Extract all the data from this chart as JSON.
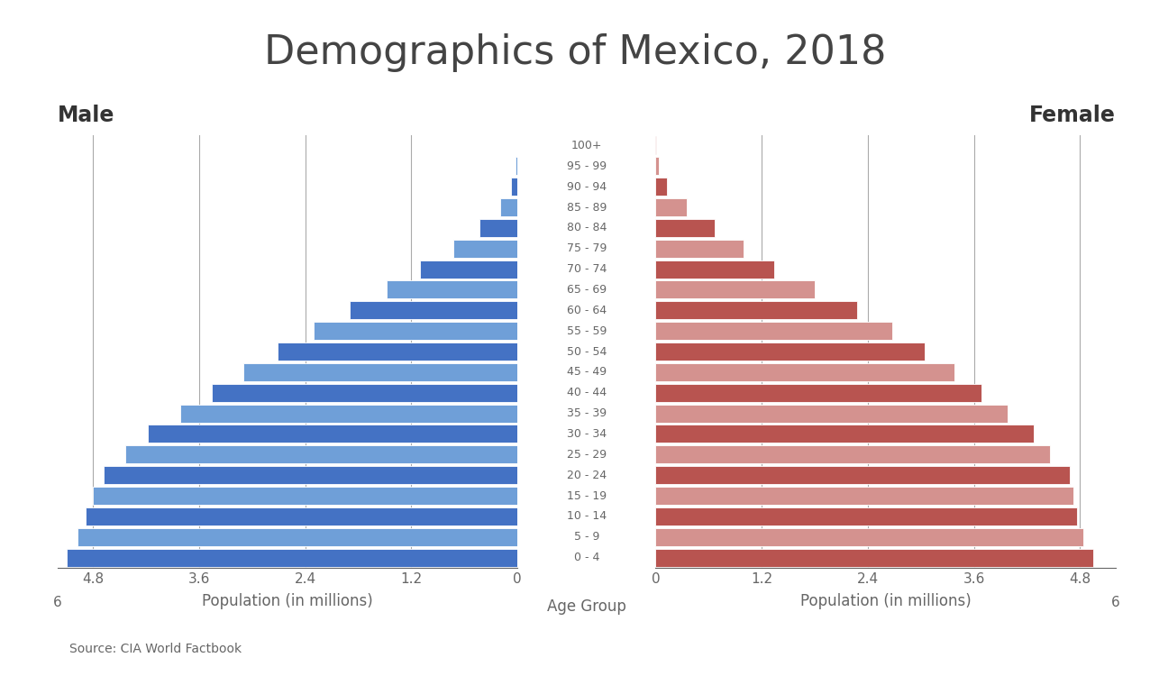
{
  "title": "Demographics of Mexico, 2018",
  "source": "Source: CIA World Factbook",
  "male_label": "Male",
  "female_label": "Female",
  "xlabel_left": "Population (in millions)",
  "xlabel_center": "Age Group",
  "xlabel_right": "Population (in millions)",
  "age_groups": [
    "0 - 4",
    "5 - 9",
    "10 - 14",
    "15 - 19",
    "20 - 24",
    "25 - 29",
    "30 - 34",
    "35 - 39",
    "40 - 44",
    "45 - 49",
    "50 - 54",
    "55 - 59",
    "60 - 64",
    "65 - 69",
    "70 - 74",
    "75 - 79",
    "80 - 84",
    "85 - 89",
    "90 - 94",
    "95 - 99",
    "100+"
  ],
  "male_values": [
    5.1,
    4.97,
    4.88,
    4.8,
    4.68,
    4.43,
    4.18,
    3.81,
    3.46,
    3.1,
    2.71,
    2.3,
    1.9,
    1.48,
    1.1,
    0.73,
    0.43,
    0.2,
    0.07,
    0.02,
    0.005
  ],
  "female_values": [
    4.95,
    4.84,
    4.76,
    4.72,
    4.68,
    4.46,
    4.28,
    3.98,
    3.68,
    3.38,
    3.04,
    2.68,
    2.28,
    1.8,
    1.34,
    1.0,
    0.67,
    0.35,
    0.13,
    0.04,
    0.01
  ],
  "male_colors_dark": "#4472C4",
  "male_colors_light": "#6F9FD8",
  "female_colors_dark": "#B85450",
  "female_colors_light": "#D4928F",
  "background_color": "#FFFFFF",
  "grid_color": "#AAAAAA",
  "text_color": "#666666",
  "title_color": "#444444",
  "xlim": 5.2,
  "xticks": [
    0.0,
    1.2,
    2.4,
    3.6,
    4.8
  ],
  "title_fontsize": 32,
  "tick_fontsize": 11,
  "axis_label_fontsize": 12,
  "male_female_fontsize": 17,
  "age_label_fontsize": 9,
  "source_fontsize": 10
}
